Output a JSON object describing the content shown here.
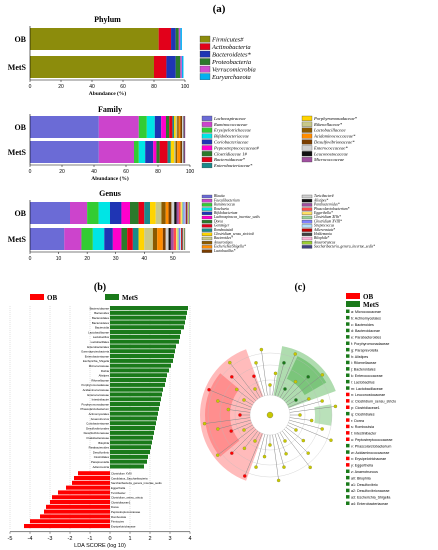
{
  "figure_label": "(a)",
  "chart_data": [
    {
      "id": "phylum",
      "type": "bar",
      "orientation": "horizontal",
      "stacked": true,
      "title": "Phylum",
      "xlabel": "Abundance (%)",
      "xlim": [
        0,
        100
      ],
      "xticks": [
        "0",
        "20",
        "40",
        "60",
        "80",
        "100"
      ],
      "categories": [
        "OB",
        "MetS"
      ],
      "series": [
        {
          "name": "Firmicutes#",
          "color": "#8c8c0c",
          "values": [
            83,
            80
          ]
        },
        {
          "name": "Actinobacteria",
          "color": "#e2001a",
          "values": [
            8,
            8
          ]
        },
        {
          "name": "Bacteroidetes*",
          "color": "#1f35b4",
          "values": [
            3,
            6
          ]
        },
        {
          "name": "Proteobacteria",
          "color": "#2b7a2b",
          "values": [
            2,
            3
          ]
        },
        {
          "name": "Verrucomicrobia",
          "color": "#cf50cf",
          "values": [
            1,
            1
          ]
        },
        {
          "name": "Euryarchaeota",
          "color": "#00b0f0",
          "values": [
            1,
            1
          ]
        }
      ],
      "legend_position": "right"
    },
    {
      "id": "family",
      "type": "bar",
      "orientation": "horizontal",
      "stacked": true,
      "title": "Family",
      "xlabel": "Abundance (%)",
      "xlim": [
        0,
        100
      ],
      "xticks": [
        "0",
        "20",
        "40",
        "60",
        "80",
        "100"
      ],
      "categories": [
        "OB",
        "MetS"
      ],
      "series": [
        {
          "name": "Lachnospiraceae",
          "color": "#6b6bd6",
          "values": [
            43,
            43
          ]
        },
        {
          "name": "Ruminococcaceae",
          "color": "#cc44cc",
          "values": [
            25,
            22
          ]
        },
        {
          "name": "Erysipelotrichaceae",
          "color": "#33cc33",
          "values": [
            5,
            3
          ]
        },
        {
          "name": "Bifidobacteriaceae",
          "color": "#00e5e5",
          "values": [
            5,
            4
          ]
        },
        {
          "name": "Coriobacteriaceae",
          "color": "#1f35b4",
          "values": [
            4,
            5
          ]
        },
        {
          "name": "Peptostreptococcaceae#",
          "color": "#ff00cc",
          "values": [
            3,
            2
          ]
        },
        {
          "name": "Clostridiaceae 1#",
          "color": "#2b7a2b",
          "values": [
            2,
            2
          ]
        },
        {
          "name": "Bacteroidaceae*",
          "color": "#e2001a",
          "values": [
            2,
            5
          ]
        },
        {
          "name": "Enterobacteriaceae*",
          "color": "#1a8a8a",
          "values": [
            1,
            2
          ]
        },
        {
          "name": "Porphyromonadaceae*",
          "color": "#ffd400",
          "values": [
            1,
            2
          ]
        },
        {
          "name": "Rikenellaceae*",
          "color": "#c8c88a",
          "values": [
            1,
            1
          ]
        },
        {
          "name": "Lactobacillaceae",
          "color": "#8c5a00",
          "values": [
            1,
            1
          ]
        },
        {
          "name": "Acidaminococcaceae*",
          "color": "#ff8c00",
          "values": [
            1,
            2
          ]
        },
        {
          "name": "Desulfovibrionaceae*",
          "color": "#7a3d00",
          "values": [
            1,
            1
          ]
        },
        {
          "name": "Enterococcaceae*",
          "color": "#d1d1d1",
          "values": [
            1,
            1
          ]
        },
        {
          "name": "Leuconostocaceae",
          "color": "#111111",
          "values": [
            0.5,
            0.5
          ]
        },
        {
          "name": "Micrococcaceae",
          "color": "#a050a0",
          "values": [
            0.5,
            0.5
          ]
        }
      ],
      "legend_position": "right"
    },
    {
      "id": "genus",
      "type": "bar",
      "orientation": "horizontal",
      "stacked": true,
      "title": "Genus",
      "xlim": [
        0,
        56
      ],
      "xticks": [
        "0",
        "10",
        "20",
        "30",
        "40",
        "50"
      ],
      "categories": [
        "OB",
        "MetS"
      ],
      "series": [
        {
          "name": "Blautia",
          "color": "#6b6bd6",
          "values": [
            14,
            12
          ]
        },
        {
          "name": "Faecalibacterium",
          "color": "#cc44cc",
          "values": [
            6,
            6
          ]
        },
        {
          "name": "Ruminococcus",
          "color": "#33cc33",
          "values": [
            4,
            4
          ]
        },
        {
          "name": "Roseburia",
          "color": "#00e5e5",
          "values": [
            4,
            4
          ]
        },
        {
          "name": "Bifidobacterium",
          "color": "#1f35b4",
          "values": [
            4,
            3
          ]
        },
        {
          "name": "Lachnospiracea_incertae_sedis",
          "color": "#ff00cc",
          "values": [
            3,
            3
          ]
        },
        {
          "name": "Dorea",
          "color": "#2b7a2b",
          "values": [
            3,
            2
          ]
        },
        {
          "name": "Gemmiger",
          "color": "#e2001a",
          "values": [
            2,
            2
          ]
        },
        {
          "name": "Romboutsia#",
          "color": "#1a8a8a",
          "values": [
            2,
            2
          ]
        },
        {
          "name": "Clostridium_sensu_stricto#",
          "color": "#ffd400",
          "values": [
            2,
            2
          ]
        },
        {
          "name": "Bacteroides*",
          "color": "#c8c88a",
          "values": [
            2,
            3
          ]
        },
        {
          "name": "Anaerostipes",
          "color": "#8c5a00",
          "values": [
            1.5,
            1.5
          ]
        },
        {
          "name": "Escherichia/Shigella*",
          "color": "#ff8c00",
          "values": [
            1,
            2
          ]
        },
        {
          "name": "Lactobacillus*",
          "color": "#7a3d00",
          "values": [
            1,
            1
          ]
        },
        {
          "name": "Turicibacter#",
          "color": "#d1d1d1",
          "values": [
            1,
            1
          ]
        },
        {
          "name": "Alistipes*",
          "color": "#111111",
          "values": [
            0.8,
            0.8
          ]
        },
        {
          "name": "Parabacteroides*",
          "color": "#a050a0",
          "values": [
            0.8,
            1
          ]
        },
        {
          "name": "Phascolarctobacterium*",
          "color": "#ff4d4d",
          "values": [
            0.6,
            0.8
          ]
        },
        {
          "name": "Eggerthella*",
          "color": "#ffe066",
          "values": [
            0.5,
            0.5
          ]
        },
        {
          "name": "Clostridium XIVa*",
          "color": "#9ad09a",
          "values": [
            0.5,
            0.5
          ]
        },
        {
          "name": "Clostridium XVIII*",
          "color": "#8080ff",
          "values": [
            0.4,
            0.4
          ]
        },
        {
          "name": "Streptococcus",
          "color": "#b0e0ff",
          "values": [
            0.4,
            0.4
          ]
        },
        {
          "name": "Adlercreutzia*",
          "color": "#c00000",
          "values": [
            0.3,
            0.3
          ]
        },
        {
          "name": "Holdemania",
          "color": "#404040",
          "values": [
            0.3,
            0.3
          ]
        },
        {
          "name": "Bilophila*",
          "color": "#ffb3d9",
          "values": [
            0.3,
            0.3
          ]
        },
        {
          "name": "Anaerotruncus",
          "color": "#9acd32",
          "values": [
            0.3,
            0.3
          ]
        },
        {
          "name": "Saccharibacteria_genera_incertae_sedis*",
          "color": "#404080",
          "values": [
            0.2,
            0.2
          ]
        }
      ],
      "legend_position": "right"
    },
    {
      "id": "lda",
      "type": "bar",
      "orientation": "horizontal",
      "label": "(b)",
      "xlabel": "LDA SCORE (log 10)",
      "xlim": [
        -5,
        4
      ],
      "xticks": [
        "-5",
        "-4",
        "-3",
        "-2",
        "-1",
        "0",
        "1",
        "2",
        "3",
        "4"
      ],
      "legend": [
        {
          "name": "OB",
          "color": "#ff0000"
        },
        {
          "name": "MetS",
          "color": "#1a7a1a"
        }
      ],
      "series": [
        {
          "name": "MetS",
          "color": "#1a7a1a",
          "labels": [
            "Bacteroidaceae",
            "Bacteroides",
            "Bacteroidales",
            "Bacteroidetes",
            "Bacteroidia",
            "Lactobacillaceae",
            "Lactobacillus",
            "Lactobacillales",
            "Enterobacteriales",
            "Gammaproteobacteria",
            "Enterobacteriaceae",
            "Escherichia_Shigella",
            "Micrococcaceae",
            "Rothia",
            "Alistipes",
            "Rikenellaceae",
            "Porphyromonadaceae",
            "Acidaminococcaceae",
            "Enterococcaceae",
            "Intestinibacter",
            "Porphyromonadaceae",
            "Phascolarctobacterium",
            "Actinomycetales",
            "Anaerotruncus",
            "Coriobacteriaceae",
            "Desulfovibrionales",
            "Desulfovibrionaceae",
            "Oxalobacteraceae",
            "Bilophila",
            "Parabacteroides",
            "Desulfovibrio",
            "Clostridiales",
            "Paraprevotella",
            "Adlercreutzia"
          ],
          "values": [
            3.9,
            3.85,
            3.8,
            3.75,
            3.7,
            3.55,
            3.5,
            3.45,
            3.3,
            3.25,
            3.2,
            3.15,
            3.05,
            2.95,
            2.85,
            2.8,
            2.75,
            2.65,
            2.6,
            2.55,
            2.5,
            2.45,
            2.4,
            2.35,
            2.3,
            2.25,
            2.2,
            2.15,
            2.1,
            2.05,
            2.0,
            1.9,
            1.85,
            1.7
          ]
        },
        {
          "name": "OB",
          "color": "#ff0000",
          "labels": [
            "Clostridium XVIII",
            "Candidatus_Saccharibacteria",
            "Saccharibacteria_genera_incertae_sedis",
            "Eggerthella",
            "Turicibacter",
            "Clostridium_sensu_stricto",
            "Clostridiaceae1",
            "Dorea",
            "Peptostreptococcaceae",
            "Romboutsia",
            "Firmicutes",
            "Erysipelotrichaceae"
          ],
          "values": [
            -1.6,
            -1.8,
            -1.9,
            -2.2,
            -2.6,
            -2.9,
            -3.0,
            -3.2,
            -3.3,
            -3.5,
            -4.0,
            -4.3
          ]
        }
      ]
    },
    {
      "id": "cladogram",
      "type": "table",
      "label": "(c)",
      "legend": [
        {
          "name": "OB",
          "color": "#ff0000"
        },
        {
          "name": "MetS",
          "color": "#1a7a1a"
        }
      ],
      "clade_labels": [
        "a: Micrococcaceae",
        "b: Actinomycetales",
        "c: Bacteroides",
        "d: Bacteroidaceae",
        "e: Parabacteroides",
        "f: Porphyromonadaceae",
        "g: Paraprevotella",
        "h: Alistipes",
        "i: Rikenellaceae",
        "j: Bacteroidales",
        "k: Enterococcaceae",
        "l: Lactobacillus",
        "m: Lactobacillaceae",
        "n: Leuconostocaceae",
        "o: Clostridium_sensu_stricto",
        "p: Clostridiaceae1",
        "q: Clostridiales",
        "r: Dorea",
        "s: Romboutsia",
        "t: Intestinibacter",
        "u: Peptostreptococcaceae",
        "v: Phascolarctobacterium",
        "w: Acidaminococcaceae",
        "x: Erysipelotrichaceae",
        "y: Eggerthella",
        "z: Anaerotruncus",
        "a0: Bilophila",
        "a1: Desulfovibrio",
        "a2: Desulfovibrionaceae",
        "a3: Escherichia_Shigella",
        "a4: Enterobacteriaceae"
      ]
    }
  ]
}
